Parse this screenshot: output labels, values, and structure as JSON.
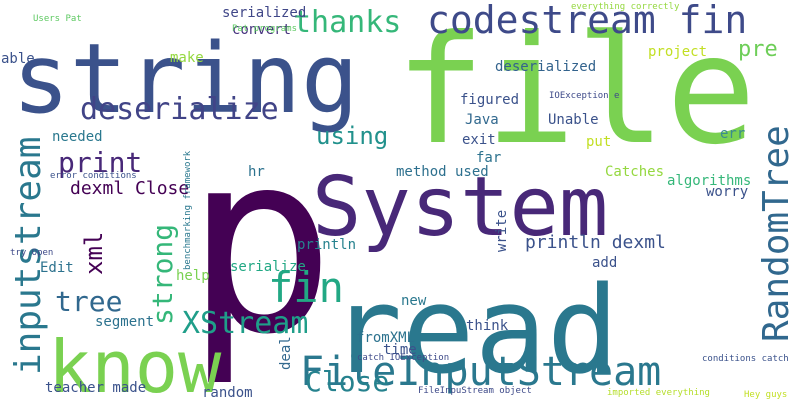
{
  "words": [
    {
      "text": "p",
      "color": "#440154"
    },
    {
      "text": "file",
      "color": "#7ad151"
    },
    {
      "text": "read",
      "color": "#2a788e"
    },
    {
      "text": "string",
      "color": "#3b528b"
    },
    {
      "text": "System",
      "color": "#482878"
    },
    {
      "text": "know",
      "color": "#7ad151"
    },
    {
      "text": "codestream fin",
      "color": "#3e4a89"
    },
    {
      "text": "FileInputStream",
      "color": "#2a788e"
    },
    {
      "text": "inputstream",
      "color": "#2a788e"
    },
    {
      "text": "RandomTree",
      "color": "#31688e"
    },
    {
      "text": "deserialize",
      "color": "#414487"
    },
    {
      "text": "XStream",
      "color": "#1f9e89"
    },
    {
      "text": "thanks",
      "color": "#35b779"
    },
    {
      "text": "Close",
      "color": "#26828e"
    },
    {
      "text": "fin",
      "color": "#22a884"
    },
    {
      "text": "print",
      "color": "#482878"
    },
    {
      "text": "strong",
      "color": "#35b779"
    },
    {
      "text": "tree",
      "color": "#31688e"
    },
    {
      "text": "using",
      "color": "#21918c"
    },
    {
      "text": "xml",
      "color": "#440154"
    },
    {
      "text": "pre",
      "color": "#6ece58"
    },
    {
      "text": "dexml Close",
      "color": "#440154"
    },
    {
      "text": "println dexml",
      "color": "#3b528b"
    },
    {
      "text": "serialized",
      "color": "#404788"
    },
    {
      "text": "convert",
      "color": "#46327e"
    },
    {
      "text": "deserialized",
      "color": "#33638d"
    },
    {
      "text": "figured",
      "color": "#3b528b"
    },
    {
      "text": "Java",
      "color": "#31688e"
    },
    {
      "text": "Unable",
      "color": "#3b528b"
    },
    {
      "text": "exit",
      "color": "#3b528b"
    },
    {
      "text": "far",
      "color": "#2c728e"
    },
    {
      "text": "needed",
      "color": "#2a788e"
    },
    {
      "text": "make",
      "color": "#95d840"
    },
    {
      "text": "project",
      "color": "#c2df23"
    },
    {
      "text": "put",
      "color": "#c2df23"
    },
    {
      "text": "err",
      "color": "#3b8b8e"
    },
    {
      "text": "method used",
      "color": "#2d708e"
    },
    {
      "text": "Catches",
      "color": "#95d840"
    },
    {
      "text": "algorithms",
      "color": "#35b779"
    },
    {
      "text": "worry",
      "color": "#3b528b"
    },
    {
      "text": "hr",
      "color": "#2c728e"
    },
    {
      "text": "println",
      "color": "#26828e"
    },
    {
      "text": "serialize",
      "color": "#22a884"
    },
    {
      "text": "write",
      "color": "#3b528b"
    },
    {
      "text": "add",
      "color": "#3b528b"
    },
    {
      "text": "help",
      "color": "#7ad151"
    },
    {
      "text": "Edit",
      "color": "#2c728e"
    },
    {
      "text": "segment",
      "color": "#2c728e"
    },
    {
      "text": "new",
      "color": "#2a788e"
    },
    {
      "text": "think",
      "color": "#3b528b"
    },
    {
      "text": "fromXML",
      "color": "#2c728e"
    },
    {
      "text": "time",
      "color": "#3b528b"
    },
    {
      "text": "deal",
      "color": "#31688e"
    },
    {
      "text": "teacher made",
      "color": "#3b528b"
    },
    {
      "text": "random",
      "color": "#3b528b"
    },
    {
      "text": "able",
      "color": "#3b528b"
    },
    {
      "text": "Users Pat",
      "color": "#5ec962"
    },
    {
      "text": "Pat programs",
      "color": "#5ec962"
    },
    {
      "text": "everything correctly",
      "color": "#95d840"
    },
    {
      "text": "IOException e",
      "color": "#3e4a89"
    },
    {
      "text": "error conditions",
      "color": "#3b528b"
    },
    {
      "text": "benchmarking framework",
      "color": "#2a788e"
    },
    {
      "text": "try Open",
      "color": "#3e4a89"
    },
    {
      "text": "catch IOException",
      "color": "#3e4a89"
    },
    {
      "text": "FileInpuStream object",
      "color": "#3e4a89"
    },
    {
      "text": "imported everything",
      "color": "#b5de2b"
    },
    {
      "text": "conditions catch",
      "color": "#3b528b"
    },
    {
      "text": "Hey guys",
      "color": "#c2df23"
    }
  ]
}
